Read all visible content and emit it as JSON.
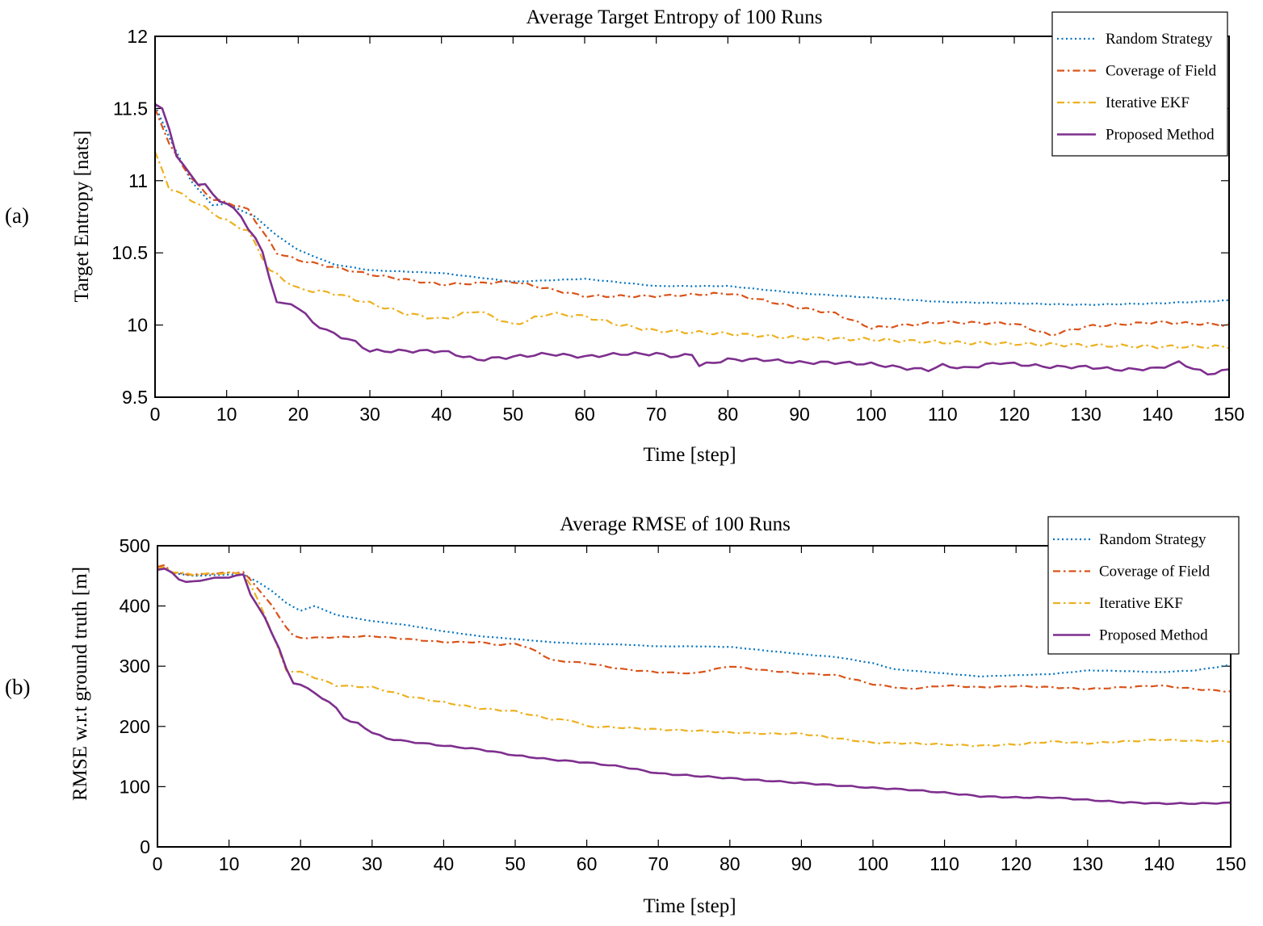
{
  "chart_data": [
    {
      "type": "line",
      "panel_label": "(a)",
      "title": "Average Target Entropy of 100 Runs",
      "xlabel": "Time [step]",
      "ylabel": "Target Entropy [nats]",
      "xlim": [
        0,
        150
      ],
      "ylim": [
        9.5,
        12
      ],
      "xticks": [
        0,
        10,
        20,
        30,
        40,
        50,
        60,
        70,
        80,
        90,
        100,
        110,
        120,
        130,
        140,
        150
      ],
      "yticks": [
        9.5,
        10,
        10.5,
        11,
        11.5,
        12
      ],
      "ytick_labels": [
        "9.5",
        "10",
        "10.5",
        "11",
        "11.5",
        "12"
      ],
      "grid": false,
      "legend_position": "top-right",
      "noise_amplitude": 0.012,
      "series": [
        {
          "name": "Random Strategy",
          "color": "#0072BD",
          "style": "dotted",
          "x": [
            0,
            2,
            5,
            8,
            10,
            14,
            17,
            20,
            25,
            30,
            40,
            50,
            60,
            70,
            80,
            90,
            100,
            110,
            120,
            130,
            140,
            150
          ],
          "y": [
            11.52,
            11.3,
            11.0,
            10.83,
            10.84,
            10.75,
            10.62,
            10.52,
            10.42,
            10.38,
            10.36,
            10.3,
            10.32,
            10.27,
            10.27,
            10.22,
            10.19,
            10.16,
            10.15,
            10.14,
            10.15,
            10.17
          ]
        },
        {
          "name": "Coverage of Field",
          "color": "#D95319",
          "style": "dashdot",
          "x": [
            0,
            2,
            5,
            8,
            10,
            13,
            15,
            17,
            20,
            25,
            30,
            40,
            50,
            60,
            70,
            80,
            90,
            95,
            100,
            105,
            110,
            120,
            125,
            130,
            140,
            150
          ],
          "y": [
            11.5,
            11.25,
            11.02,
            10.87,
            10.85,
            10.8,
            10.65,
            10.5,
            10.45,
            10.4,
            10.35,
            10.28,
            10.3,
            10.2,
            10.2,
            10.22,
            10.12,
            10.08,
            9.98,
            10.0,
            10.02,
            10.01,
            9.93,
            9.99,
            10.02,
            10.0
          ]
        },
        {
          "name": "Iterative EKF",
          "color": "#EDB120",
          "style": "dashdot",
          "x": [
            0,
            2,
            5,
            8,
            10,
            13,
            16,
            20,
            25,
            30,
            35,
            40,
            45,
            50,
            55,
            60,
            65,
            70,
            80,
            90,
            100,
            110,
            120,
            130,
            140,
            150
          ],
          "y": [
            11.2,
            10.95,
            10.87,
            10.78,
            10.72,
            10.65,
            10.38,
            10.25,
            10.22,
            10.15,
            10.08,
            10.04,
            10.1,
            10.0,
            10.08,
            10.06,
            10.0,
            9.96,
            9.94,
            9.91,
            9.9,
            9.88,
            9.87,
            9.86,
            9.85,
            9.85
          ]
        },
        {
          "name": "Proposed Method",
          "color": "#7E2F8E",
          "style": "solid",
          "x": [
            0,
            1,
            2,
            3,
            5,
            6,
            7,
            8,
            9,
            10,
            12,
            14,
            15,
            16,
            17,
            18,
            19,
            20,
            22,
            24,
            26,
            28,
            30,
            35,
            40,
            45,
            50,
            55,
            60,
            65,
            70,
            73,
            75,
            76,
            80,
            85,
            90,
            95,
            100,
            105,
            108,
            110,
            113,
            118,
            120,
            125,
            130,
            135,
            140,
            143,
            145,
            147,
            150
          ],
          "y": [
            11.53,
            11.5,
            11.35,
            11.18,
            11.03,
            10.98,
            10.98,
            10.9,
            10.86,
            10.85,
            10.75,
            10.6,
            10.5,
            10.33,
            10.16,
            10.14,
            10.15,
            10.12,
            10.02,
            9.96,
            9.92,
            9.88,
            9.82,
            9.82,
            9.82,
            9.76,
            9.78,
            9.8,
            9.78,
            9.8,
            9.8,
            9.78,
            9.8,
            9.72,
            9.76,
            9.76,
            9.74,
            9.74,
            9.73,
            9.7,
            9.69,
            9.72,
            9.7,
            9.74,
            9.73,
            9.71,
            9.71,
            9.69,
            9.7,
            9.74,
            9.7,
            9.66,
            9.69
          ]
        }
      ]
    },
    {
      "type": "line",
      "panel_label": "(b)",
      "title": "Average RMSE of 100 Runs",
      "xlabel": "Time [step]",
      "ylabel": "RMSE w.r.t ground truth [m]",
      "xlim": [
        0,
        150
      ],
      "ylim": [
        0,
        500
      ],
      "xticks": [
        0,
        10,
        20,
        30,
        40,
        50,
        60,
        70,
        80,
        90,
        100,
        110,
        120,
        130,
        140,
        150
      ],
      "yticks": [
        0,
        100,
        200,
        300,
        400,
        500
      ],
      "ytick_labels": [
        "0",
        "100",
        "200",
        "300",
        "400",
        "500"
      ],
      "grid": false,
      "legend_position": "top-right",
      "noise_amplitude": 1.2,
      "series": [
        {
          "name": "Random Strategy",
          "color": "#0072BD",
          "style": "dotted",
          "x": [
            0,
            1,
            2,
            5,
            10,
            12,
            14,
            16,
            18,
            20,
            22,
            25,
            30,
            35,
            40,
            45,
            50,
            55,
            60,
            65,
            70,
            75,
            80,
            85,
            90,
            95,
            100,
            103,
            106,
            110,
            115,
            120,
            125,
            130,
            135,
            140,
            145,
            150
          ],
          "y": [
            460,
            462,
            455,
            450,
            452,
            452,
            440,
            425,
            405,
            392,
            400,
            385,
            375,
            368,
            358,
            350,
            345,
            340,
            337,
            336,
            333,
            333,
            332,
            326,
            320,
            315,
            305,
            295,
            292,
            288,
            283,
            285,
            287,
            293,
            292,
            290,
            293,
            302
          ]
        },
        {
          "name": "Coverage of Field",
          "color": "#D95319",
          "style": "dashdot",
          "x": [
            0,
            1,
            2,
            5,
            10,
            12,
            14,
            16,
            18,
            19,
            20,
            25,
            30,
            35,
            40,
            45,
            48,
            50,
            53,
            55,
            60,
            65,
            70,
            75,
            80,
            85,
            90,
            95,
            100,
            105,
            110,
            115,
            120,
            125,
            130,
            135,
            140,
            145,
            150
          ],
          "y": [
            465,
            468,
            455,
            452,
            455,
            456,
            430,
            400,
            365,
            350,
            347,
            348,
            350,
            345,
            340,
            340,
            335,
            338,
            325,
            310,
            305,
            295,
            290,
            288,
            300,
            293,
            288,
            285,
            270,
            262,
            268,
            265,
            267,
            265,
            262,
            265,
            268,
            262,
            258
          ]
        },
        {
          "name": "Iterative EKF",
          "color": "#EDB120",
          "style": "dashdot",
          "x": [
            0,
            1,
            2,
            5,
            10,
            12,
            13,
            15,
            17,
            18,
            20,
            25,
            30,
            35,
            40,
            45,
            50,
            55,
            58,
            60,
            65,
            70,
            75,
            80,
            85,
            90,
            95,
            100,
            105,
            110,
            115,
            120,
            125,
            130,
            135,
            140,
            145,
            150
          ],
          "y": [
            462,
            465,
            457,
            452,
            455,
            453,
            435,
            385,
            325,
            293,
            290,
            268,
            265,
            250,
            240,
            230,
            225,
            212,
            210,
            200,
            198,
            195,
            193,
            190,
            188,
            188,
            180,
            173,
            172,
            170,
            168,
            170,
            175,
            172,
            175,
            178,
            176,
            175
          ]
        },
        {
          "name": "Proposed Method",
          "color": "#7E2F8E",
          "style": "solid",
          "x": [
            0,
            1,
            2,
            3,
            4,
            5,
            7,
            10,
            12,
            13,
            15,
            17,
            18,
            19,
            20,
            22,
            24,
            25,
            26,
            27,
            28,
            30,
            32,
            35,
            40,
            45,
            50,
            55,
            60,
            65,
            70,
            75,
            80,
            85,
            90,
            95,
            100,
            105,
            110,
            115,
            120,
            125,
            130,
            135,
            140,
            145,
            150
          ],
          "y": [
            460,
            462,
            455,
            445,
            440,
            440,
            445,
            448,
            452,
            420,
            380,
            330,
            295,
            272,
            270,
            255,
            240,
            230,
            215,
            208,
            205,
            190,
            180,
            175,
            168,
            162,
            152,
            145,
            140,
            133,
            122,
            118,
            114,
            110,
            106,
            102,
            98,
            95,
            90,
            84,
            82,
            82,
            78,
            74,
            72,
            72,
            73
          ]
        }
      ]
    }
  ]
}
